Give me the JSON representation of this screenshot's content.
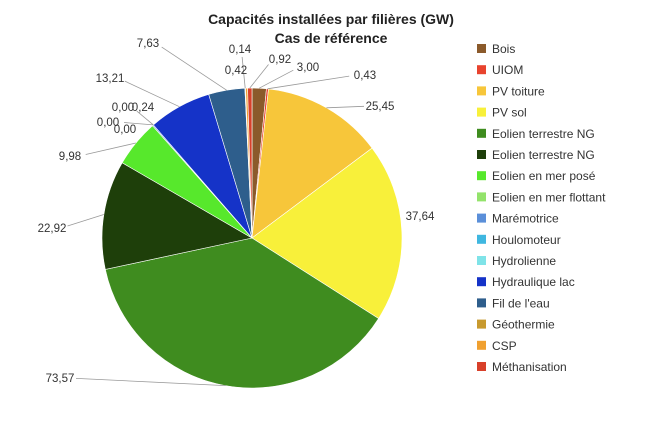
{
  "chart_data": {
    "type": "pie",
    "title": "Capacités installées par filières (GW)",
    "subtitle": "Cas de référence",
    "legend_position": "right",
    "slices": [
      {
        "name": "Bois",
        "value": 3.0,
        "label": "3,00",
        "color": "#8B5A2B"
      },
      {
        "name": "UIOM",
        "value": 0.43,
        "label": "0,43",
        "color": "#E8432E"
      },
      {
        "name": "PV toiture",
        "value": 25.45,
        "label": "25,45",
        "color": "#F7C63A"
      },
      {
        "name": "PV sol",
        "value": 37.64,
        "label": "37,64",
        "color": "#F8F03A"
      },
      {
        "name": "Eolien terrestre NG",
        "value": 73.57,
        "label": "73,57",
        "color": "#3F8C1F"
      },
      {
        "name": "Eolien terrestre NG",
        "value": 22.92,
        "label": "22,92",
        "color": "#1E3F0A"
      },
      {
        "name": "Eolien en mer posé",
        "value": 9.98,
        "label": "9,98",
        "color": "#57E82C"
      },
      {
        "name": "Eolien en mer flottant",
        "value": 0.0,
        "label": "0,00",
        "color": "#93E36B"
      },
      {
        "name": "Marémotrice",
        "value": 0.24,
        "label": "0,24",
        "color": "#5B8FD9"
      },
      {
        "name": "Houlomoteur",
        "value": 0.0,
        "label": "0,00",
        "color": "#3FB7E0"
      },
      {
        "name": "Hydrolienne",
        "value": 0.0,
        "label": "0,00",
        "color": "#7FE3E8"
      },
      {
        "name": "Hydraulique lac",
        "value": 13.21,
        "label": "13,21",
        "color": "#1533C8"
      },
      {
        "name": "Fil de l'eau",
        "value": 7.63,
        "label": "7,63",
        "color": "#2E5E8C"
      },
      {
        "name": "Géothermie",
        "value": 0.14,
        "label": "0,14",
        "color": "#C89A2E"
      },
      {
        "name": "CSP",
        "value": 0.42,
        "label": "0,42",
        "color": "#F0A030"
      },
      {
        "name": "Méthanisation",
        "value": 0.92,
        "label": "0,92",
        "color": "#D8402A"
      }
    ]
  }
}
